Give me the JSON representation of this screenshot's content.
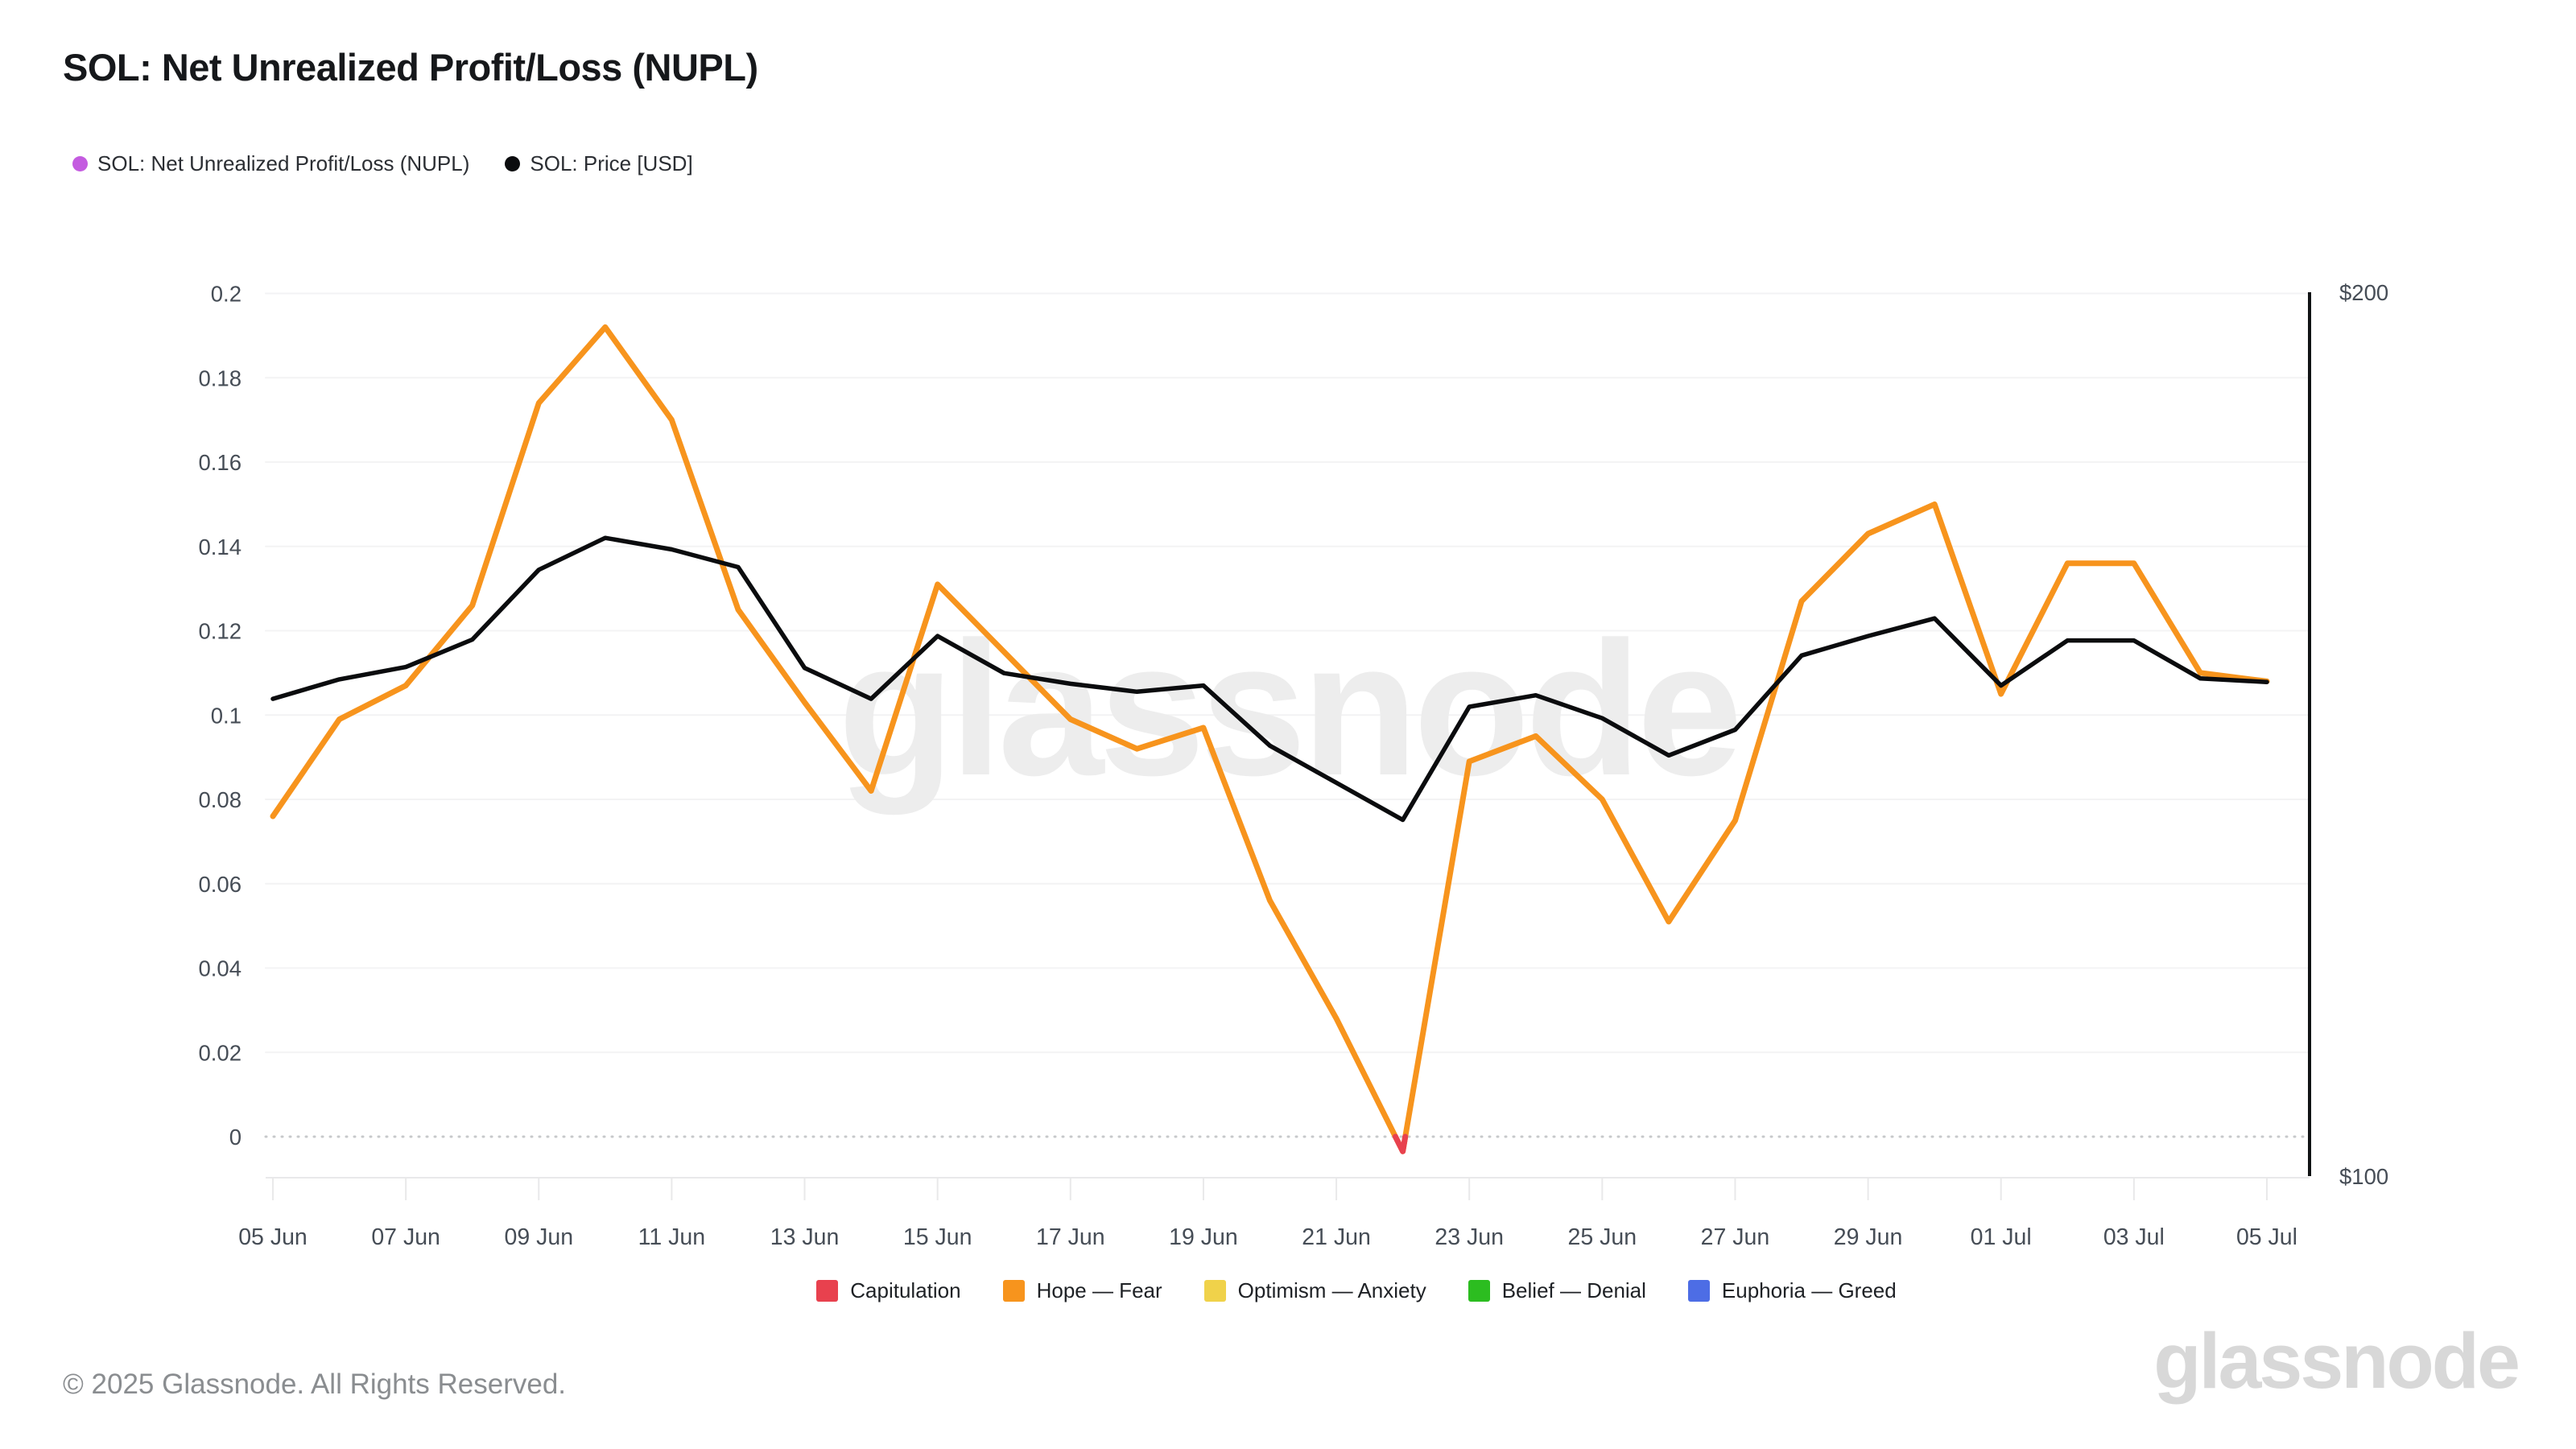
{
  "header": {
    "title": "SOL: Net Unrealized Profit/Loss (NUPL)",
    "series_legend": [
      {
        "label": "SOL: Net Unrealized Profit/Loss (NUPL)",
        "color": "#c45be0"
      },
      {
        "label": "SOL: Price [USD]",
        "color": "#0b0c0e"
      }
    ]
  },
  "chart_data": {
    "type": "line",
    "title": "SOL: Net Unrealized Profit/Loss (NUPL)",
    "x": [
      "05 Jun",
      "06 Jun",
      "07 Jun",
      "08 Jun",
      "09 Jun",
      "10 Jun",
      "11 Jun",
      "12 Jun",
      "13 Jun",
      "14 Jun",
      "15 Jun",
      "16 Jun",
      "17 Jun",
      "18 Jun",
      "19 Jun",
      "20 Jun",
      "21 Jun",
      "22 Jun",
      "23 Jun",
      "24 Jun",
      "25 Jun",
      "26 Jun",
      "27 Jun",
      "28 Jun",
      "29 Jun",
      "30 Jun",
      "01 Jul",
      "02 Jul",
      "03 Jul",
      "04 Jul",
      "05 Jul"
    ],
    "series": [
      {
        "name": "SOL: Net Unrealized Profit/Loss (NUPL)",
        "axis": "left",
        "color": "#f7941d",
        "below_zero_color": "#e8414e",
        "values": [
          0.076,
          0.099,
          0.107,
          0.126,
          0.174,
          0.192,
          0.17,
          0.125,
          0.103,
          0.082,
          0.131,
          0.115,
          0.099,
          0.092,
          0.097,
          0.056,
          0.028,
          -0.0035,
          0.089,
          0.095,
          0.08,
          0.051,
          0.075,
          0.127,
          0.143,
          0.15,
          0.105,
          0.136,
          0.136,
          0.11,
          0.108
        ]
      },
      {
        "name": "SOL: Price [USD]",
        "axis": "right",
        "color": "#0b0c0e",
        "values": [
          154.0,
          156.2,
          157.6,
          160.7,
          168.6,
          172.2,
          170.9,
          168.9,
          157.5,
          154.0,
          161.1,
          156.9,
          155.7,
          154.8,
          155.5,
          148.7,
          144.5,
          140.3,
          153.1,
          154.4,
          151.8,
          147.6,
          150.5,
          158.9,
          161.1,
          163.1,
          155.5,
          160.6,
          160.6,
          156.3,
          155.9
        ]
      }
    ],
    "left_axis": {
      "tick_values": [
        0,
        0.02,
        0.04,
        0.06,
        0.08,
        0.1,
        0.12,
        0.14,
        0.16,
        0.18,
        0.2
      ],
      "tick_labels": [
        "0",
        "0.02",
        "0.04",
        "0.06",
        "0.08",
        "0.1",
        "0.12",
        "0.14",
        "0.16",
        "0.18",
        "0.2"
      ],
      "zero_line_style": "dotted"
    },
    "right_axis": {
      "tick_values": [
        200,
        100
      ],
      "tick_labels": [
        "$200",
        "$100"
      ],
      "range": [
        100,
        200
      ]
    },
    "x_axis": {
      "tick_indices": [
        0,
        2,
        4,
        6,
        8,
        10,
        12,
        14,
        16,
        18,
        20,
        22,
        24,
        26,
        28,
        30
      ],
      "tick_labels": [
        "05 Jun",
        "07 Jun",
        "09 Jun",
        "11 Jun",
        "13 Jun",
        "15 Jun",
        "17 Jun",
        "19 Jun",
        "21 Jun",
        "23 Jun",
        "25 Jun",
        "27 Jun",
        "29 Jun",
        "01 Jul",
        "03 Jul",
        "05 Jul"
      ]
    },
    "grid": "horizontal",
    "legend_position": "bottom",
    "watermark": "glassnode"
  },
  "zones_legend": [
    {
      "label": "Capitulation",
      "color": "#e8414e"
    },
    {
      "label": "Hope — Fear",
      "color": "#f7941d"
    },
    {
      "label": "Optimism — Anxiety",
      "color": "#f0d24a"
    },
    {
      "label": "Belief — Denial",
      "color": "#2cbd20"
    },
    {
      "label": "Euphoria — Greed",
      "color": "#4d6de5"
    }
  ],
  "footer": {
    "copyright": "© 2025 Glassnode. All Rights Reserved.",
    "brand": "glassnode"
  }
}
